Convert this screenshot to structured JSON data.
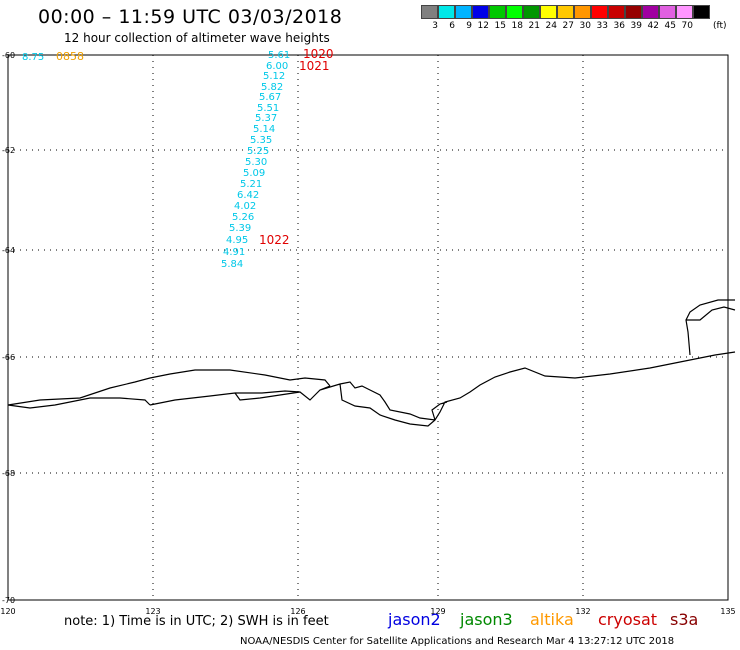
{
  "header": {
    "title": "00:00 – 11:59 UTC 03/03/2018",
    "subtitle": "12 hour collection of altimeter wave heights"
  },
  "colorbar": {
    "swatches": [
      "#808080",
      "#00e8e8",
      "#00b4ff",
      "#0000e8",
      "#00c800",
      "#00ff00",
      "#009600",
      "#ffff00",
      "#ffc800",
      "#ff9600",
      "#ff0000",
      "#c80000",
      "#960000",
      "#a000a0",
      "#e060e0",
      "#ff96ff",
      "#000000"
    ],
    "labels": [
      "3",
      "6",
      "9",
      "12",
      "15",
      "18",
      "21",
      "24",
      "27",
      "30",
      "33",
      "36",
      "39",
      "42",
      "45",
      "70"
    ],
    "unit": "(ft)"
  },
  "axes": {
    "lat_labels": [
      {
        "text": "-60"
      },
      {
        "text": "-62"
      },
      {
        "text": "-64"
      },
      {
        "text": "-66"
      },
      {
        "text": "-68"
      },
      {
        "text": "-70"
      }
    ],
    "lon_labels": [
      {
        "text": "120"
      },
      {
        "text": "123"
      },
      {
        "text": "126"
      },
      {
        "text": "129"
      },
      {
        "text": "132"
      },
      {
        "text": "135"
      }
    ]
  },
  "observations": {
    "cyan_values": [
      "5.61",
      "6.00",
      "5.12",
      "5.82",
      "5.67",
      "5.51",
      "5.37",
      "5.14",
      "5.35",
      "5.25",
      "5.30",
      "5.09",
      "5.21",
      "6.42",
      "4.02",
      "5.26",
      "5.39",
      "4.95",
      "4.91",
      "5.84"
    ],
    "left_edge_value": "8.75",
    "orange_time": "0858",
    "red_times": [
      "1020",
      "1021",
      "1022"
    ]
  },
  "footer": {
    "note": "note: 1) Time is in UTC; 2) SWH is in feet",
    "credit": "NOAA/NESDIS Center for Satellite Applications and Research    Mar  4 13:27:12 UTC 2018",
    "satellites": [
      {
        "name": "jason2",
        "color": "#0000e0"
      },
      {
        "name": "jason3",
        "color": "#008800"
      },
      {
        "name": "altika",
        "color": "#ff9900"
      },
      {
        "name": "cryosat",
        "color": "#cc0000"
      },
      {
        "name": "s3a",
        "color": "#880000"
      }
    ]
  },
  "colors": {
    "track_cyan": "#00c8e8",
    "time_red": "#e00000",
    "time_orange": "#f0a000",
    "grid": "#000000"
  }
}
